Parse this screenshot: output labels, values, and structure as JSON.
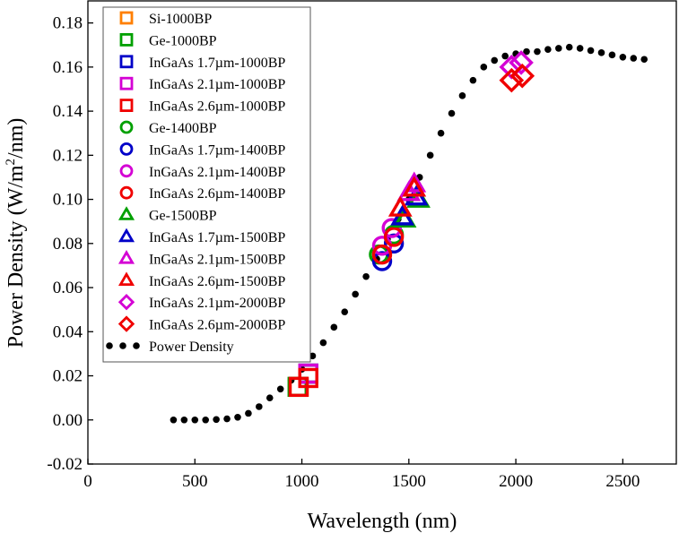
{
  "chart_data": {
    "type": "scatter",
    "title": "",
    "xlabel": "Wavelength (nm)",
    "ylabel_parts": {
      "pre": "Power Density (W/m",
      "sup": "2",
      "post": "/nm)"
    },
    "xlim": [
      0,
      2750
    ],
    "ylim": [
      -0.02,
      0.19
    ],
    "xticks": [
      0,
      500,
      1000,
      1500,
      2000,
      2500
    ],
    "yticks": [
      -0.02,
      0.0,
      0.02,
      0.04,
      0.06,
      0.08,
      0.1,
      0.12,
      0.14,
      0.16,
      0.18
    ],
    "xtick_labels": [
      "0",
      "500",
      "1000",
      "1500",
      "2000",
      "2500"
    ],
    "ytick_labels": [
      "-0.02",
      "0.00",
      "0.02",
      "0.04",
      "0.06",
      "0.08",
      "0.10",
      "0.12",
      "0.14",
      "0.16",
      "0.18"
    ],
    "legend_position": "top-left",
    "power_density": {
      "name": "Power Density",
      "x": [
        400,
        450,
        500,
        550,
        600,
        650,
        700,
        750,
        800,
        850,
        900,
        950,
        1000,
        1050,
        1100,
        1150,
        1200,
        1250,
        1300,
        1350,
        1400,
        1450,
        1500,
        1550,
        1600,
        1650,
        1700,
        1750,
        1800,
        1850,
        1900,
        1950,
        2000,
        2050,
        2100,
        2150,
        2200,
        2250,
        2300,
        2350,
        2400,
        2450,
        2500,
        2550,
        2600
      ],
      "y": [
        0.0,
        0.0,
        0.0,
        0.0,
        0.0002,
        0.0005,
        0.0012,
        0.003,
        0.006,
        0.01,
        0.014,
        0.018,
        0.023,
        0.029,
        0.035,
        0.042,
        0.049,
        0.057,
        0.065,
        0.073,
        0.082,
        0.091,
        0.1,
        0.11,
        0.12,
        0.13,
        0.139,
        0.147,
        0.154,
        0.16,
        0.163,
        0.165,
        0.166,
        0.167,
        0.167,
        0.168,
        0.1685,
        0.169,
        0.1685,
        0.1675,
        0.1665,
        0.1655,
        0.1645,
        0.164,
        0.1635
      ]
    },
    "series": [
      {
        "name": "Si-1000BP",
        "marker": "square",
        "color": "#FF7F00",
        "points": [
          [
            985,
            0.015
          ]
        ]
      },
      {
        "name": "Ge-1000BP",
        "marker": "square",
        "color": "#00A000",
        "points": [
          [
            980,
            0.015
          ],
          [
            1030,
            0.021
          ]
        ]
      },
      {
        "name": "InGaAs 1.7µm-1000BP",
        "marker": "square",
        "color": "#0000C8",
        "points": [
          [
            1030,
            0.021
          ]
        ]
      },
      {
        "name": "InGaAs 2.1µm-1000BP",
        "marker": "square",
        "color": "#D400D4",
        "points": [
          [
            1030,
            0.021
          ]
        ]
      },
      {
        "name": "InGaAs 2.6µm-1000BP",
        "marker": "square",
        "color": "#F00000",
        "points": [
          [
            985,
            0.015
          ],
          [
            1030,
            0.019
          ]
        ]
      },
      {
        "name": "Ge-1400BP",
        "marker": "circle",
        "color": "#00A000",
        "points": [
          [
            1360,
            0.075
          ],
          [
            1430,
            0.084
          ]
        ]
      },
      {
        "name": "InGaAs 1.7µm-1400BP",
        "marker": "circle",
        "color": "#0000C8",
        "points": [
          [
            1375,
            0.072
          ],
          [
            1430,
            0.08
          ]
        ]
      },
      {
        "name": "InGaAs 2.1µm-1400BP",
        "marker": "circle",
        "color": "#D400D4",
        "points": [
          [
            1375,
            0.079
          ],
          [
            1420,
            0.087
          ]
        ]
      },
      {
        "name": "InGaAs 2.6µm-1400BP",
        "marker": "circle",
        "color": "#F00000",
        "points": [
          [
            1375,
            0.075
          ],
          [
            1430,
            0.083
          ]
        ]
      },
      {
        "name": "Ge-1500BP",
        "marker": "triangle",
        "color": "#00A000",
        "points": [
          [
            1480,
            0.091
          ],
          [
            1545,
            0.1
          ]
        ]
      },
      {
        "name": "InGaAs 1.7µm-1500BP",
        "marker": "triangle",
        "color": "#0000C8",
        "points": [
          [
            1470,
            0.092
          ],
          [
            1535,
            0.101
          ]
        ]
      },
      {
        "name": "InGaAs 2.1µm-1500BP",
        "marker": "triangle",
        "color": "#D400D4",
        "points": [
          [
            1500,
            0.103
          ],
          [
            1525,
            0.107
          ]
        ]
      },
      {
        "name": "InGaAs 2.6µm-1500BP",
        "marker": "triangle",
        "color": "#F00000",
        "points": [
          [
            1460,
            0.096
          ],
          [
            1525,
            0.105
          ]
        ]
      },
      {
        "name": "InGaAs 2.1µm-2000BP",
        "marker": "diamond",
        "color": "#D400D4",
        "points": [
          [
            1980,
            0.16
          ],
          [
            2025,
            0.162
          ]
        ]
      },
      {
        "name": "InGaAs 2.6µm-2000BP",
        "marker": "diamond",
        "color": "#F00000",
        "points": [
          [
            1980,
            0.154
          ],
          [
            2030,
            0.156
          ]
        ]
      }
    ]
  }
}
